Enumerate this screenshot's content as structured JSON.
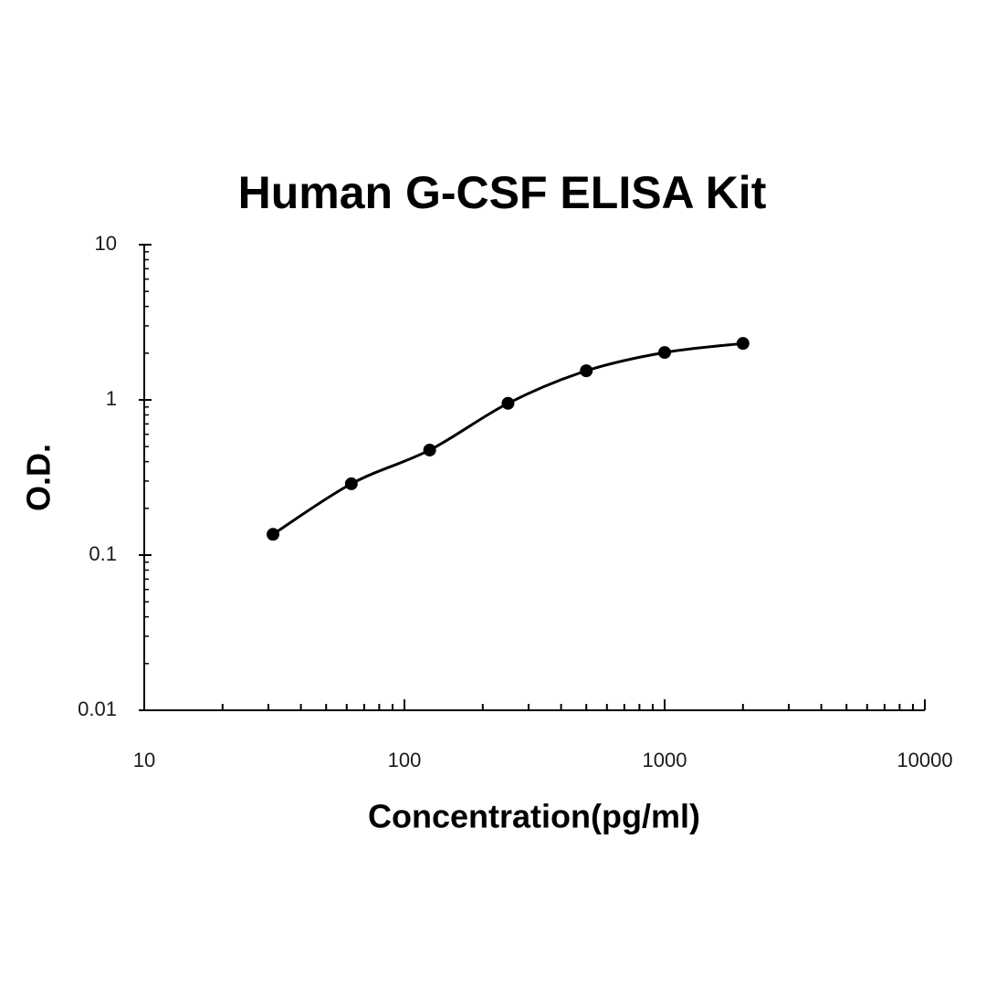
{
  "chart_data": {
    "type": "line",
    "title": "Human G-CSF ELISA Kit",
    "x_label": "Concentration(pg/ml)",
    "y_label": "O.D.",
    "x": [
      31.25,
      62.5,
      125,
      250,
      500,
      1000,
      2000
    ],
    "series": [
      {
        "color": "#000000",
        "values": [
          0.136,
          0.288,
          0.475,
          0.95,
          1.54,
          2.02,
          2.31
        ]
      }
    ],
    "xscale": "log",
    "yscale": "log",
    "xlim": [
      10,
      10000
    ],
    "xticks": [
      10,
      100,
      1000,
      10000
    ],
    "ylim": [
      0.01,
      10
    ],
    "yticks": [
      0.01,
      0.1,
      1,
      10
    ],
    "markers": true,
    "smooth": true
  }
}
